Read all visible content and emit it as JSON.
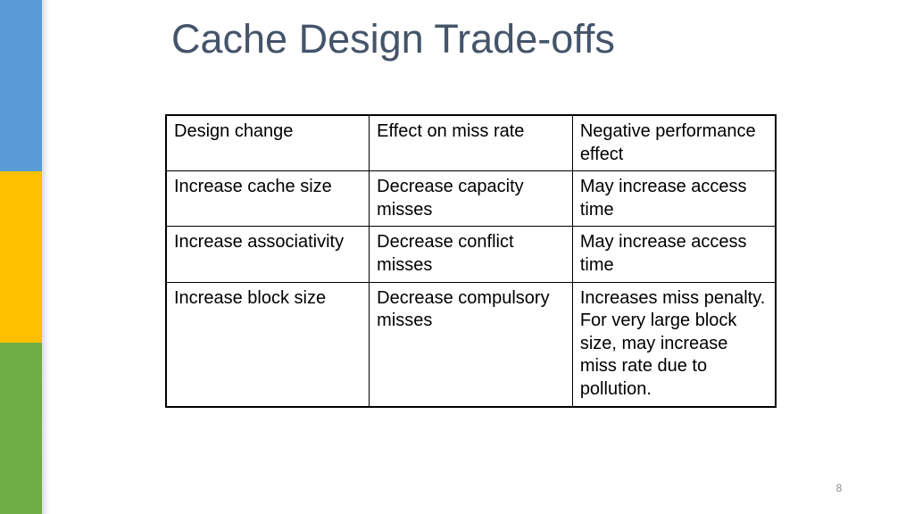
{
  "slide": {
    "title": "Cache Design Trade-offs",
    "page_number": "8"
  },
  "colors": {
    "title": "#44546a",
    "accent_blue": "#5b9bd5",
    "accent_yellow": "#ffc000",
    "accent_green": "#70ad47"
  },
  "table": {
    "header": {
      "c1": "Design change",
      "c2": "Effect on miss rate",
      "c3": "Negative performance effect"
    },
    "rows": [
      {
        "c1": "Increase cache size",
        "c2": "Decrease capacity misses",
        "c3": "May increase access time"
      },
      {
        "c1": "Increase associativity",
        "c2": "Decrease conflict misses",
        "c3": "May increase access time"
      },
      {
        "c1": "Increase block size",
        "c2": "Decrease compulsory misses",
        "c3": "Increases miss penalty. For very large block size, may increase miss rate due to pollution."
      }
    ]
  }
}
